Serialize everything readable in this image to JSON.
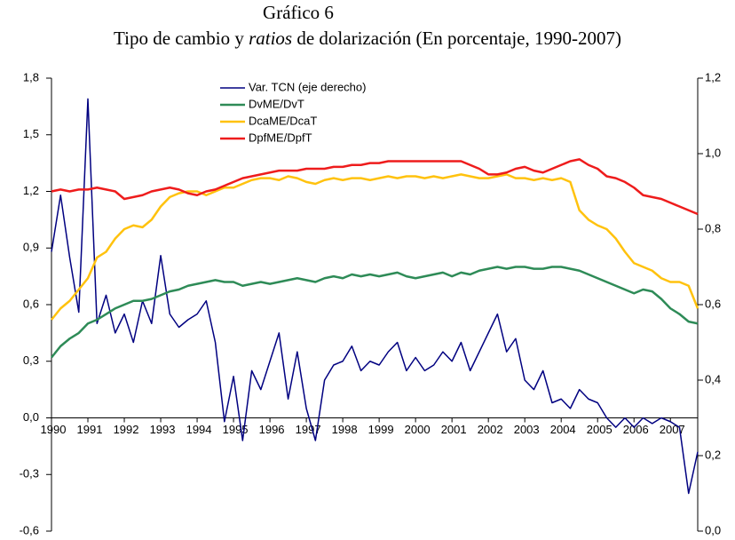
{
  "chart_data": {
    "type": "line",
    "title": "Gráfico 6",
    "subtitle": [
      "Tipo de cambio y ",
      "ratios",
      " de dolarización (En porcentaje, 1990-2007)"
    ],
    "x": [
      1990,
      1990.25,
      1990.5,
      1990.75,
      1991,
      1991.25,
      1991.5,
      1991.75,
      1992,
      1992.25,
      1992.5,
      1992.75,
      1993,
      1993.25,
      1993.5,
      1993.75,
      1994,
      1994.25,
      1994.5,
      1994.75,
      1995,
      1995.25,
      1995.5,
      1995.75,
      1996,
      1996.25,
      1996.5,
      1996.75,
      1997,
      1997.25,
      1997.5,
      1997.75,
      1998,
      1998.25,
      1998.5,
      1998.75,
      1999,
      1999.25,
      1999.5,
      1999.75,
      2000,
      2000.25,
      2000.5,
      2000.75,
      2001,
      2001.25,
      2001.5,
      2001.75,
      2002,
      2002.25,
      2002.5,
      2002.75,
      2003,
      2003.25,
      2003.5,
      2003.75,
      2004,
      2004.25,
      2004.5,
      2004.75,
      2005,
      2005.25,
      2005.5,
      2005.75,
      2006,
      2006.25,
      2006.5,
      2006.75,
      2007,
      2007.25,
      2007.5,
      2007.75
    ],
    "xlim": [
      1990,
      2007.75
    ],
    "xticks": [
      1990,
      1991,
      1992,
      1993,
      1994,
      1995,
      1996,
      1997,
      1998,
      1999,
      2000,
      2001,
      2002,
      2003,
      2004,
      2005,
      2006,
      2007
    ],
    "ylim": [
      -0.6,
      1.8
    ],
    "yticks": [
      {
        "value": -0.6,
        "label": "-0,6"
      },
      {
        "value": -0.3,
        "label": "-0,3"
      },
      {
        "value": 0,
        "label": "0,0"
      },
      {
        "value": 0.3,
        "label": "0,3"
      },
      {
        "value": 0.6,
        "label": "0,6"
      },
      {
        "value": 0.9,
        "label": "0,9"
      },
      {
        "value": 1.2,
        "label": "1,2"
      },
      {
        "value": 1.5,
        "label": "1,5"
      },
      {
        "value": 1.8,
        "label": "1,8"
      }
    ],
    "y2lim": [
      0,
      1.2
    ],
    "y2ticks": [
      {
        "value": 0,
        "label": "0,0"
      },
      {
        "value": 0.2,
        "label": "0,2"
      },
      {
        "value": 0.4,
        "label": "0,4"
      },
      {
        "value": 0.6,
        "label": "0,6"
      },
      {
        "value": 0.8,
        "label": "0,8"
      },
      {
        "value": 1,
        "label": "1,0"
      },
      {
        "value": 1.2,
        "label": "1,2"
      }
    ],
    "grid": false,
    "series": [
      {
        "name": "Var. TCN (eje derecho)",
        "color": "#000080",
        "axis": "y2",
        "values": [
          0.74,
          0.89,
          0.725,
          0.58,
          1.145,
          0.55,
          0.625,
          0.525,
          0.575,
          0.5,
          0.61,
          0.55,
          0.73,
          0.575,
          0.54,
          0.56,
          0.575,
          0.61,
          0.5,
          0.29,
          0.41,
          0.24,
          0.425,
          0.375,
          0.45,
          0.525,
          0.35,
          0.475,
          0.325,
          0.24,
          0.4,
          0.44,
          0.45,
          0.49,
          0.425,
          0.45,
          0.44,
          0.475,
          0.5,
          0.425,
          0.46,
          0.425,
          0.44,
          0.475,
          0.45,
          0.5,
          0.425,
          0.475,
          0.525,
          0.575,
          0.475,
          0.51,
          0.4,
          0.375,
          0.425,
          0.34,
          0.35,
          0.325,
          0.375,
          0.35,
          0.34,
          0.3,
          0.275,
          0.3,
          0.275,
          0.3,
          0.285,
          0.3,
          0.29,
          0.275,
          0.1,
          0.21
        ]
      },
      {
        "name": "DvME/DvT",
        "color": "#2e8b57",
        "values": [
          0.32,
          0.38,
          0.42,
          0.45,
          0.5,
          0.52,
          0.55,
          0.58,
          0.6,
          0.62,
          0.62,
          0.63,
          0.65,
          0.67,
          0.68,
          0.7,
          0.71,
          0.72,
          0.73,
          0.72,
          0.72,
          0.7,
          0.71,
          0.72,
          0.71,
          0.72,
          0.73,
          0.74,
          0.73,
          0.72,
          0.74,
          0.75,
          0.74,
          0.76,
          0.75,
          0.76,
          0.75,
          0.76,
          0.77,
          0.75,
          0.74,
          0.75,
          0.76,
          0.77,
          0.75,
          0.77,
          0.76,
          0.78,
          0.79,
          0.8,
          0.79,
          0.8,
          0.8,
          0.79,
          0.79,
          0.8,
          0.8,
          0.79,
          0.78,
          0.76,
          0.74,
          0.72,
          0.7,
          0.68,
          0.66,
          0.68,
          0.67,
          0.63,
          0.58,
          0.55,
          0.51,
          0.5
        ]
      },
      {
        "name": "DcaME/DcaT",
        "color": "#ffc20e",
        "values": [
          0.52,
          0.58,
          0.62,
          0.68,
          0.74,
          0.85,
          0.88,
          0.95,
          1.0,
          1.02,
          1.01,
          1.05,
          1.12,
          1.17,
          1.19,
          1.2,
          1.2,
          1.18,
          1.2,
          1.22,
          1.22,
          1.24,
          1.26,
          1.27,
          1.27,
          1.26,
          1.28,
          1.27,
          1.25,
          1.24,
          1.26,
          1.27,
          1.26,
          1.27,
          1.27,
          1.26,
          1.27,
          1.28,
          1.27,
          1.28,
          1.28,
          1.27,
          1.28,
          1.27,
          1.28,
          1.29,
          1.28,
          1.27,
          1.27,
          1.28,
          1.29,
          1.27,
          1.27,
          1.26,
          1.27,
          1.26,
          1.27,
          1.25,
          1.1,
          1.05,
          1.02,
          1.0,
          0.95,
          0.88,
          0.82,
          0.8,
          0.78,
          0.74,
          0.72,
          0.72,
          0.7,
          0.58
        ]
      },
      {
        "name": "DpfME/DpfT",
        "color": "#ee1c1c",
        "values": [
          1.2,
          1.21,
          1.2,
          1.21,
          1.21,
          1.22,
          1.21,
          1.2,
          1.16,
          1.17,
          1.18,
          1.2,
          1.21,
          1.22,
          1.21,
          1.19,
          1.18,
          1.2,
          1.21,
          1.23,
          1.25,
          1.27,
          1.28,
          1.29,
          1.3,
          1.31,
          1.31,
          1.31,
          1.32,
          1.32,
          1.32,
          1.33,
          1.33,
          1.34,
          1.34,
          1.35,
          1.35,
          1.36,
          1.36,
          1.36,
          1.36,
          1.36,
          1.36,
          1.36,
          1.36,
          1.36,
          1.34,
          1.32,
          1.29,
          1.29,
          1.3,
          1.32,
          1.33,
          1.31,
          1.3,
          1.32,
          1.34,
          1.36,
          1.37,
          1.34,
          1.32,
          1.28,
          1.27,
          1.25,
          1.22,
          1.18,
          1.17,
          1.16,
          1.14,
          1.12,
          1.1,
          1.08
        ]
      }
    ]
  }
}
